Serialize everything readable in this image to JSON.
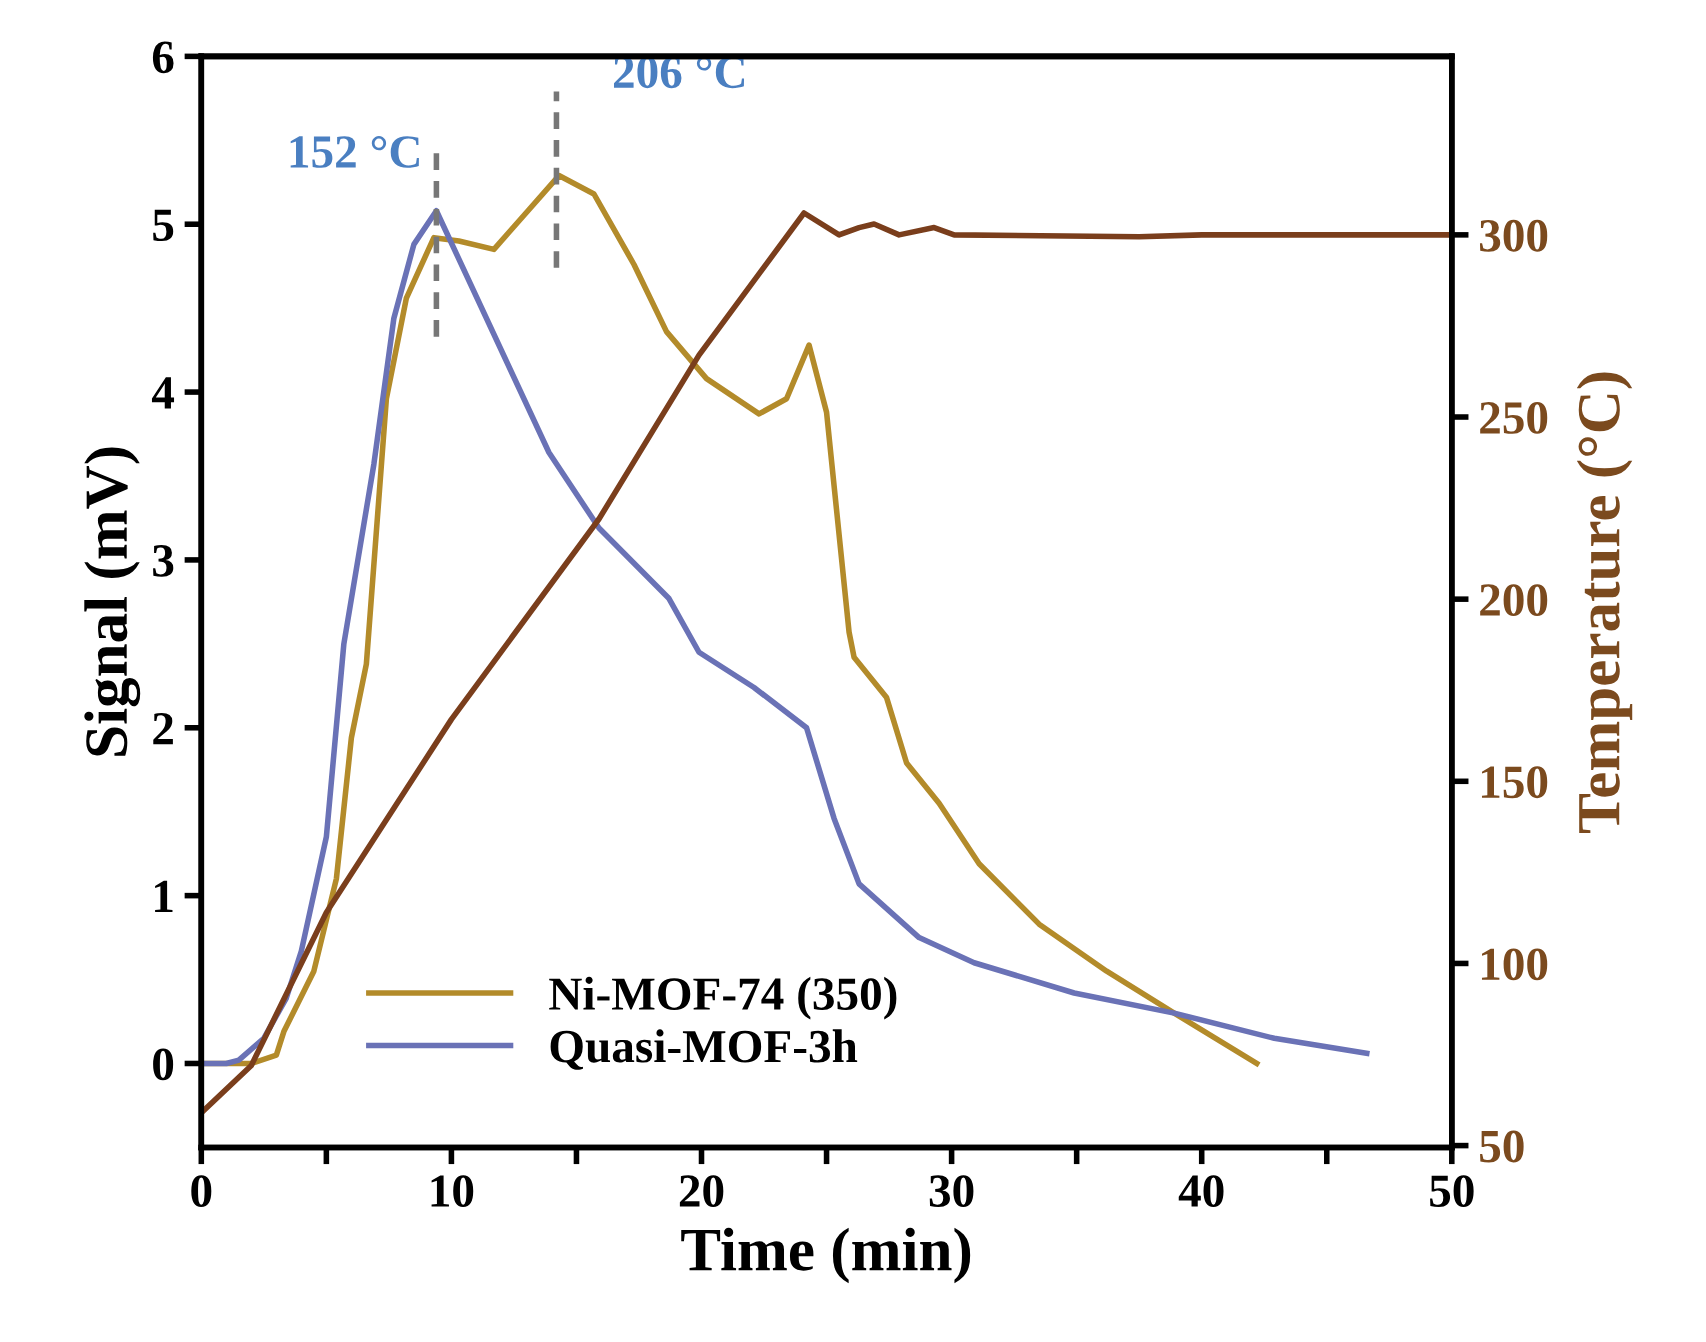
{
  "chart_data": {
    "type": "line",
    "xlabel": "Time (min)",
    "ylabel": "Signal (mV)",
    "y2label": "Temperature (°C)",
    "xlim": [
      0,
      50
    ],
    "xticks": [
      0,
      {
        "value": 5,
        "label": null
      },
      10,
      {
        "value": 15,
        "label": null
      },
      20,
      {
        "value": 25,
        "label": null
      },
      30,
      {
        "value": 35,
        "label": null
      },
      40,
      {
        "value": 45,
        "label": null
      },
      50
    ],
    "ylim": [
      -0.5,
      6
    ],
    "yticks": [
      0,
      1,
      2,
      3,
      4,
      5,
      6
    ],
    "y2lim": [
      49.5,
      349
    ],
    "y2ticks": [
      50,
      100,
      150,
      200,
      250,
      300
    ],
    "grid": false,
    "legend": "bottom left",
    "line_style": "solid",
    "marker": "none",
    "annotations": [
      {
        "text": "152 °C",
        "x": 9.4,
        "y": 5.08
      },
      {
        "text": "206 °C",
        "x": 14.2,
        "y": 5.29
      }
    ],
    "series": [
      {
        "name": "Ni-MOF-74 (350)",
        "color": "#b38b2a",
        "x": [
          0,
          1,
          2,
          3,
          3.3,
          4.5,
          5.4,
          6,
          6.6,
          7.4,
          8.2,
          9.3,
          10.3,
          11.7,
          13.0,
          14.3,
          15.7,
          17.3,
          18.6,
          20.2,
          22.3,
          23.4,
          24.3,
          25.0,
          25.9,
          26.1,
          27.4,
          28.2,
          29.5,
          31.1,
          33.5,
          36.2,
          38.9,
          42.2
        ],
        "values": [
          0,
          0,
          0,
          0.05,
          0.19,
          0.55,
          1.1,
          1.94,
          2.38,
          3.96,
          4.56,
          4.92,
          4.9,
          4.85,
          5.07,
          5.29,
          5.18,
          4.76,
          4.36,
          4.08,
          3.87,
          3.96,
          4.28,
          3.88,
          2.57,
          2.42,
          2.18,
          1.79,
          1.55,
          1.19,
          0.83,
          0.55,
          0.3,
          0.0
        ]
      },
      {
        "name": "Quasi-MOF-3h",
        "color": "#6a72b6",
        "x": [
          0,
          1,
          1.5,
          2.5,
          3.4,
          4,
          5,
          5.7,
          6.9,
          7.7,
          8.5,
          9.4,
          13.9,
          15.9,
          18.7,
          19.9,
          22.1,
          24.2,
          25.3,
          26.3,
          28.7,
          30.9,
          34.9,
          38.9,
          42.9,
          46.6
        ],
        "values": [
          0,
          0,
          0.02,
          0.15,
          0.39,
          0.67,
          1.35,
          2.5,
          3.57,
          4.44,
          4.88,
          5.08,
          3.64,
          3.19,
          2.77,
          2.45,
          2.24,
          2.0,
          1.46,
          1.07,
          0.75,
          0.6,
          0.42,
          0.3,
          0.15,
          0.06
        ]
      },
      {
        "color": "#7a3e1c",
        "axis": "y2",
        "x": [
          0,
          2,
          5,
          10,
          15.9,
          19.9,
          24.1,
          25.5,
          26.3,
          26.9,
          27.9,
          29.3,
          30.1,
          37.5,
          40,
          50
        ],
        "values": [
          59,
          72,
          114,
          167,
          222,
          267,
          306,
          300,
          302,
          303,
          300,
          302,
          300,
          299.5,
          300,
          300
        ]
      }
    ]
  }
}
